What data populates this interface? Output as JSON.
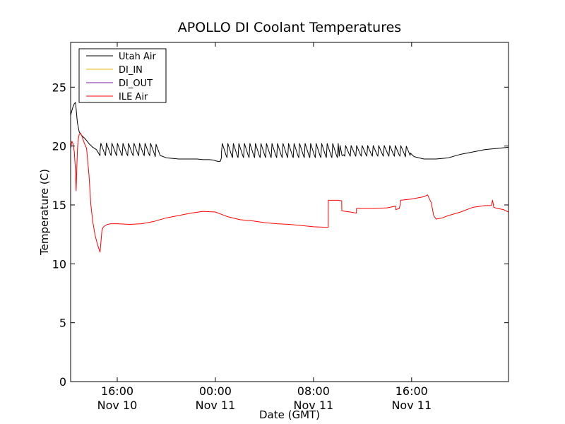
{
  "chart_data": {
    "type": "line",
    "title": "APOLLO DI Coolant Temperatures",
    "xlabel": "Date (GMT)",
    "ylabel": "Temperature (C)",
    "x_unit": "hours since 2010-11-10 00:00 GMT",
    "xlim": [
      12.2,
      47.9
    ],
    "ylim": [
      0,
      28.8
    ],
    "yticks": [
      0,
      5,
      10,
      15,
      20,
      25
    ],
    "xticks": [
      {
        "x": 16,
        "time": "16:00",
        "date": "Nov 10"
      },
      {
        "x": 24,
        "time": "00:00",
        "date": "Nov 11"
      },
      {
        "x": 32,
        "time": "08:00",
        "date": "Nov 11"
      },
      {
        "x": 40,
        "time": "16:00",
        "date": "Nov 11"
      }
    ],
    "legend_position": "upper-left",
    "series": [
      {
        "name": "Utah Air",
        "color": "#000000",
        "x": [
          12.2,
          12.35,
          12.5,
          12.6,
          12.75,
          12.9,
          13.1,
          13.4,
          13.7,
          14.0,
          14.3,
          14.6,
          14.9,
          15.2,
          15.6,
          16.0,
          16.5,
          17.0,
          17.5,
          18.0,
          18.5,
          19.0,
          19.5,
          20.0,
          20.5,
          21.0,
          21.5,
          22.0,
          22.5,
          23.0,
          23.5,
          23.9,
          24.0,
          24.2,
          24.4,
          24.5,
          26.0,
          28.0,
          30.0,
          32.0,
          34.0,
          36.0,
          37.0,
          38.0,
          39.0,
          39.9,
          40.2,
          40.6,
          41.0,
          42.0,
          43.0,
          44.0,
          45.0,
          46.0,
          47.0,
          47.9
        ],
        "values": [
          22.6,
          23.2,
          23.6,
          23.7,
          22.0,
          21.2,
          20.9,
          20.6,
          20.2,
          19.9,
          19.7,
          19.6,
          19.6,
          19.65,
          19.6,
          19.6,
          19.6,
          19.6,
          19.6,
          19.6,
          19.6,
          19.6,
          19.2,
          19.0,
          18.95,
          18.9,
          18.9,
          18.9,
          18.9,
          18.85,
          18.85,
          18.8,
          18.75,
          18.7,
          18.7,
          19.5,
          19.5,
          19.5,
          19.5,
          19.5,
          19.5,
          19.5,
          19.5,
          19.5,
          19.5,
          19.4,
          19.1,
          19.0,
          18.9,
          18.9,
          19.0,
          19.3,
          19.5,
          19.7,
          19.8,
          19.9
        ],
        "oscillations": [
          {
            "from": 14.6,
            "to": 19.4,
            "period": 0.45,
            "amplitude": 0.7
          },
          {
            "from": 24.5,
            "to": 34.1,
            "period": 0.45,
            "amplitude": 0.8
          },
          {
            "from": 34.1,
            "to": 39.9,
            "period": 0.45,
            "amplitude": 0.6
          }
        ]
      },
      {
        "name": "DI_IN",
        "color": "#e8b800",
        "x": [],
        "values": []
      },
      {
        "name": "DI_OUT",
        "color": "#7a1fa2",
        "x": [],
        "values": []
      },
      {
        "name": "ILE Air",
        "color": "#ff0000",
        "x": [
          12.2,
          12.3,
          12.4,
          12.5,
          12.6,
          12.65,
          12.7,
          12.75,
          12.8,
          12.9,
          13.0,
          13.1,
          13.2,
          13.3,
          13.5,
          13.7,
          13.85,
          14.0,
          14.2,
          14.4,
          14.6,
          14.75,
          14.85,
          14.95,
          15.2,
          15.5,
          16.0,
          17.0,
          18.0,
          19.0,
          20.0,
          21.0,
          22.0,
          23.0,
          23.5,
          24.0,
          24.5,
          25.0,
          26.0,
          27.0,
          28.0,
          29.0,
          30.0,
          31.0,
          32.0,
          33.0,
          33.2,
          33.21,
          34.0,
          34.3,
          34.31,
          35.0,
          35.5,
          35.51,
          36.0,
          37.0,
          38.0,
          38.7,
          38.71,
          39.0,
          39.1,
          39.11,
          40.0,
          41.0,
          41.3,
          41.6,
          41.8,
          42.0,
          42.5,
          43.0,
          44.0,
          45.0,
          46.0,
          46.5,
          46.6,
          46.7,
          47.0,
          47.5,
          47.9
        ],
        "values": [
          19.8,
          20.4,
          20.2,
          19.5,
          17.8,
          16.2,
          18.0,
          19.5,
          20.4,
          21.0,
          21.1,
          20.9,
          20.6,
          20.3,
          19.8,
          17.5,
          15.0,
          13.6,
          12.4,
          11.6,
          11.0,
          12.8,
          13.1,
          13.2,
          13.35,
          13.4,
          13.4,
          13.35,
          13.4,
          13.6,
          13.9,
          14.1,
          14.3,
          14.45,
          14.42,
          14.4,
          14.2,
          14.0,
          13.75,
          13.65,
          13.5,
          13.4,
          13.35,
          13.25,
          13.15,
          13.1,
          13.1,
          15.4,
          15.4,
          15.35,
          14.5,
          14.4,
          14.3,
          14.7,
          14.7,
          14.7,
          14.75,
          14.9,
          14.6,
          14.7,
          15.2,
          15.4,
          15.5,
          15.7,
          15.85,
          15.2,
          14.1,
          13.8,
          13.9,
          14.1,
          14.4,
          14.8,
          14.95,
          14.95,
          15.4,
          14.8,
          14.7,
          14.6,
          14.4
        ]
      }
    ]
  }
}
